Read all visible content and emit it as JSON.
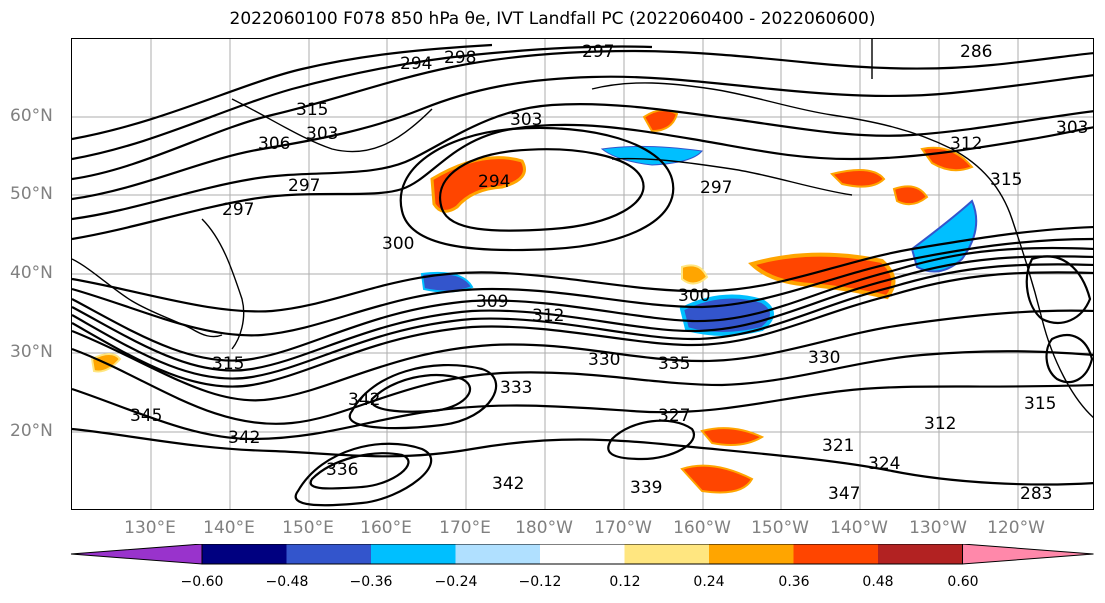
{
  "title": "2022060100 F078 850 hPa θe, IVT Landfall PC (2022060400 - 2022060600)",
  "map": {
    "lat_labels": [
      "60°N",
      "50°N",
      "40°N",
      "30°N",
      "20°N"
    ],
    "lon_labels": [
      "130°E",
      "140°E",
      "150°E",
      "160°E",
      "170°E",
      "180°W",
      "170°W",
      "160°W",
      "150°W",
      "140°W",
      "130°W",
      "120°W"
    ],
    "contour_labels": [
      "294",
      "298",
      "297",
      "315",
      "306",
      "303",
      "297",
      "303",
      "294",
      "297",
      "297",
      "312",
      "315",
      "300",
      "309",
      "312",
      "300",
      "315",
      "330",
      "335",
      "330",
      "333",
      "342",
      "345",
      "342",
      "327",
      "321",
      "324",
      "312",
      "315",
      "339",
      "342",
      "336",
      "347",
      "286",
      "303",
      "283"
    ]
  },
  "colorbar": {
    "ticks": [
      "−0.60",
      "−0.48",
      "−0.36",
      "−0.24",
      "−0.12",
      "0.12",
      "0.24",
      "0.36",
      "0.48",
      "0.60"
    ],
    "colors": [
      "#9933cc",
      "#000080",
      "#3355cc",
      "#00bfff",
      "#b0e0ff",
      "#ffffff",
      "#ffe680",
      "#ffa500",
      "#ff4500",
      "#b22222",
      "#ff88aa"
    ]
  }
}
